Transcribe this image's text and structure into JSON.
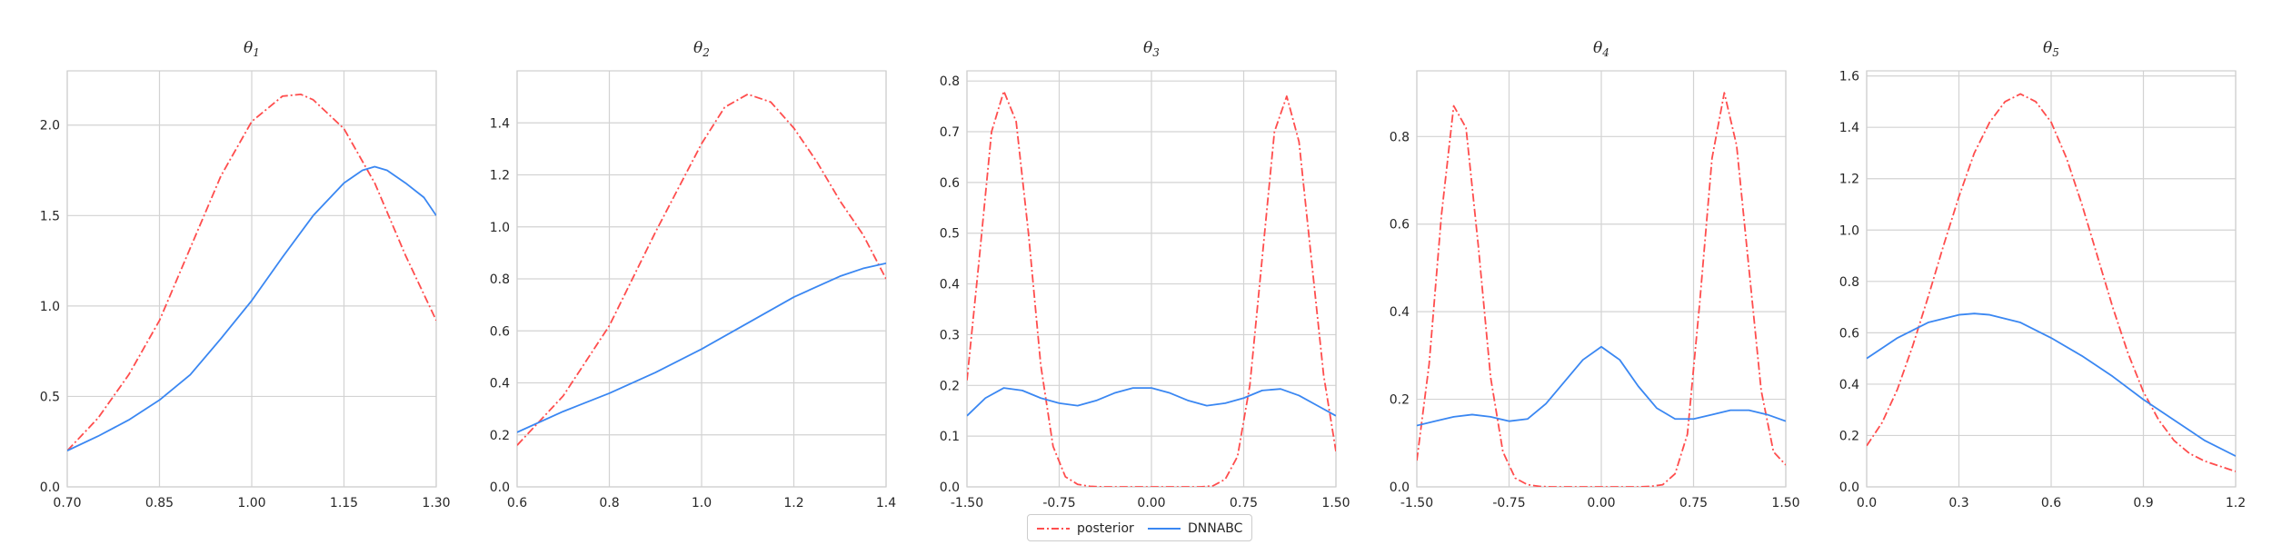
{
  "legend": {
    "posterior": "posterior",
    "dnnabc": "DNNABC"
  },
  "colors": {
    "posterior": "#ff4d4d",
    "dnnabc": "#3a87f2"
  },
  "chart_data": [
    {
      "type": "line",
      "title_symbol": "θ",
      "title_sub": "1",
      "xlim": [
        0.7,
        1.3
      ],
      "ylim": [
        0,
        2.3
      ],
      "xticks": [
        "0.70",
        "0.85",
        "1.00",
        "1.15",
        "1.30"
      ],
      "yticks": [
        "0.0",
        "0.5",
        "1.0",
        "1.5",
        "2.0"
      ],
      "series": [
        {
          "name": "posterior",
          "x": [
            0.7,
            0.75,
            0.8,
            0.85,
            0.9,
            0.95,
            1.0,
            1.05,
            1.08,
            1.1,
            1.15,
            1.2,
            1.25,
            1.3
          ],
          "y": [
            0.2,
            0.38,
            0.62,
            0.92,
            1.32,
            1.72,
            2.02,
            2.16,
            2.17,
            2.14,
            1.98,
            1.68,
            1.28,
            0.92
          ]
        },
        {
          "name": "DNNABC",
          "x": [
            0.7,
            0.75,
            0.8,
            0.85,
            0.9,
            0.95,
            1.0,
            1.05,
            1.1,
            1.15,
            1.18,
            1.2,
            1.22,
            1.25,
            1.28,
            1.3
          ],
          "y": [
            0.2,
            0.28,
            0.37,
            0.48,
            0.62,
            0.82,
            1.03,
            1.27,
            1.5,
            1.68,
            1.75,
            1.77,
            1.75,
            1.68,
            1.6,
            1.5
          ]
        }
      ]
    },
    {
      "type": "line",
      "title_symbol": "θ",
      "title_sub": "2",
      "xlim": [
        0.6,
        1.4
      ],
      "ylim": [
        0,
        1.6
      ],
      "xticks": [
        "0.6",
        "0.8",
        "1.0",
        "1.2",
        "1.4"
      ],
      "yticks": [
        "0.0",
        "0.2",
        "0.4",
        "0.6",
        "0.8",
        "1.0",
        "1.2",
        "1.4"
      ],
      "series": [
        {
          "name": "posterior",
          "x": [
            0.6,
            0.7,
            0.8,
            0.9,
            1.0,
            1.05,
            1.1,
            1.15,
            1.2,
            1.25,
            1.3,
            1.35,
            1.4
          ],
          "y": [
            0.16,
            0.35,
            0.62,
            0.98,
            1.32,
            1.46,
            1.51,
            1.48,
            1.38,
            1.25,
            1.1,
            0.97,
            0.8
          ]
        },
        {
          "name": "DNNABC",
          "x": [
            0.6,
            0.7,
            0.8,
            0.9,
            1.0,
            1.1,
            1.2,
            1.3,
            1.35,
            1.4
          ],
          "y": [
            0.21,
            0.29,
            0.36,
            0.44,
            0.53,
            0.63,
            0.73,
            0.81,
            0.84,
            0.86
          ]
        }
      ]
    },
    {
      "type": "line",
      "title_symbol": "θ",
      "title_sub": "3",
      "xlim": [
        -1.5,
        1.5
      ],
      "ylim": [
        0,
        0.82
      ],
      "xticks": [
        "-1.50",
        "-0.75",
        "0.00",
        "0.75",
        "1.50"
      ],
      "yticks": [
        "0.0",
        "0.1",
        "0.2",
        "0.3",
        "0.4",
        "0.5",
        "0.6",
        "0.7",
        "0.8"
      ],
      "series": [
        {
          "name": "posterior",
          "x": [
            -1.5,
            -1.4,
            -1.3,
            -1.2,
            -1.1,
            -1.0,
            -0.9,
            -0.8,
            -0.7,
            -0.6,
            -0.5,
            -0.4,
            -0.3,
            0.0,
            0.3,
            0.4,
            0.5,
            0.6,
            0.7,
            0.8,
            0.9,
            1.0,
            1.1,
            1.2,
            1.3,
            1.4,
            1.5
          ],
          "y": [
            0.21,
            0.45,
            0.7,
            0.78,
            0.72,
            0.5,
            0.24,
            0.08,
            0.02,
            0.005,
            0.001,
            0.0,
            0.0,
            0.0,
            0.0,
            0.0,
            0.002,
            0.015,
            0.06,
            0.2,
            0.45,
            0.7,
            0.77,
            0.68,
            0.45,
            0.22,
            0.07
          ]
        },
        {
          "name": "DNNABC",
          "x": [
            -1.5,
            -1.35,
            -1.2,
            -1.05,
            -0.9,
            -0.75,
            -0.6,
            -0.45,
            -0.3,
            -0.15,
            0.0,
            0.15,
            0.3,
            0.45,
            0.6,
            0.75,
            0.9,
            1.05,
            1.2,
            1.35,
            1.5
          ],
          "y": [
            0.14,
            0.175,
            0.195,
            0.19,
            0.175,
            0.165,
            0.16,
            0.17,
            0.185,
            0.195,
            0.195,
            0.185,
            0.17,
            0.16,
            0.165,
            0.175,
            0.19,
            0.193,
            0.18,
            0.16,
            0.14
          ]
        }
      ]
    },
    {
      "type": "line",
      "title_symbol": "θ",
      "title_sub": "4",
      "xlim": [
        -1.5,
        1.5
      ],
      "ylim": [
        0,
        0.95
      ],
      "xticks": [
        "-1.50",
        "-0.75",
        "0.00",
        "0.75",
        "1.50"
      ],
      "yticks": [
        "0.0",
        "0.2",
        "0.4",
        "0.6",
        "0.8"
      ],
      "series": [
        {
          "name": "posterior",
          "x": [
            -1.5,
            -1.4,
            -1.3,
            -1.2,
            -1.1,
            -1.0,
            -0.9,
            -0.8,
            -0.7,
            -0.6,
            -0.5,
            -0.4,
            -0.3,
            0.0,
            0.3,
            0.4,
            0.5,
            0.6,
            0.7,
            0.8,
            0.9,
            1.0,
            1.1,
            1.2,
            1.3,
            1.4,
            1.5
          ],
          "y": [
            0.06,
            0.28,
            0.62,
            0.87,
            0.82,
            0.55,
            0.25,
            0.08,
            0.02,
            0.005,
            0.001,
            0.0,
            0.0,
            0.0,
            0.0,
            0.001,
            0.005,
            0.03,
            0.12,
            0.42,
            0.75,
            0.9,
            0.78,
            0.5,
            0.22,
            0.08,
            0.05
          ]
        },
        {
          "name": "DNNABC",
          "x": [
            -1.5,
            -1.35,
            -1.2,
            -1.05,
            -0.9,
            -0.75,
            -0.6,
            -0.45,
            -0.3,
            -0.15,
            0.0,
            0.15,
            0.3,
            0.45,
            0.6,
            0.75,
            0.9,
            1.05,
            1.2,
            1.35,
            1.5
          ],
          "y": [
            0.14,
            0.15,
            0.16,
            0.165,
            0.16,
            0.15,
            0.155,
            0.19,
            0.24,
            0.29,
            0.32,
            0.29,
            0.23,
            0.18,
            0.155,
            0.155,
            0.165,
            0.175,
            0.175,
            0.165,
            0.15
          ]
        }
      ]
    },
    {
      "type": "line",
      "title_symbol": "θ",
      "title_sub": "5",
      "xlim": [
        0.0,
        1.2
      ],
      "ylim": [
        0,
        1.62
      ],
      "xticks": [
        "0.0",
        "0.3",
        "0.6",
        "0.9",
        "1.2"
      ],
      "yticks": [
        "0.0",
        "0.2",
        "0.4",
        "0.6",
        "0.8",
        "1.0",
        "1.2",
        "1.4",
        "1.6"
      ],
      "series": [
        {
          "name": "posterior",
          "x": [
            0.0,
            0.05,
            0.1,
            0.15,
            0.2,
            0.25,
            0.3,
            0.35,
            0.4,
            0.45,
            0.5,
            0.55,
            0.6,
            0.65,
            0.7,
            0.75,
            0.8,
            0.85,
            0.9,
            0.95,
            1.0,
            1.05,
            1.1,
            1.15,
            1.2
          ],
          "y": [
            0.16,
            0.25,
            0.38,
            0.55,
            0.74,
            0.94,
            1.13,
            1.3,
            1.42,
            1.5,
            1.53,
            1.5,
            1.42,
            1.28,
            1.1,
            0.9,
            0.7,
            0.52,
            0.37,
            0.26,
            0.18,
            0.13,
            0.1,
            0.08,
            0.06
          ]
        },
        {
          "name": "DNNABC",
          "x": [
            0.0,
            0.1,
            0.2,
            0.3,
            0.35,
            0.4,
            0.5,
            0.6,
            0.7,
            0.8,
            0.9,
            1.0,
            1.1,
            1.2
          ],
          "y": [
            0.5,
            0.58,
            0.64,
            0.67,
            0.675,
            0.67,
            0.64,
            0.58,
            0.51,
            0.43,
            0.34,
            0.26,
            0.18,
            0.12
          ]
        }
      ]
    }
  ]
}
